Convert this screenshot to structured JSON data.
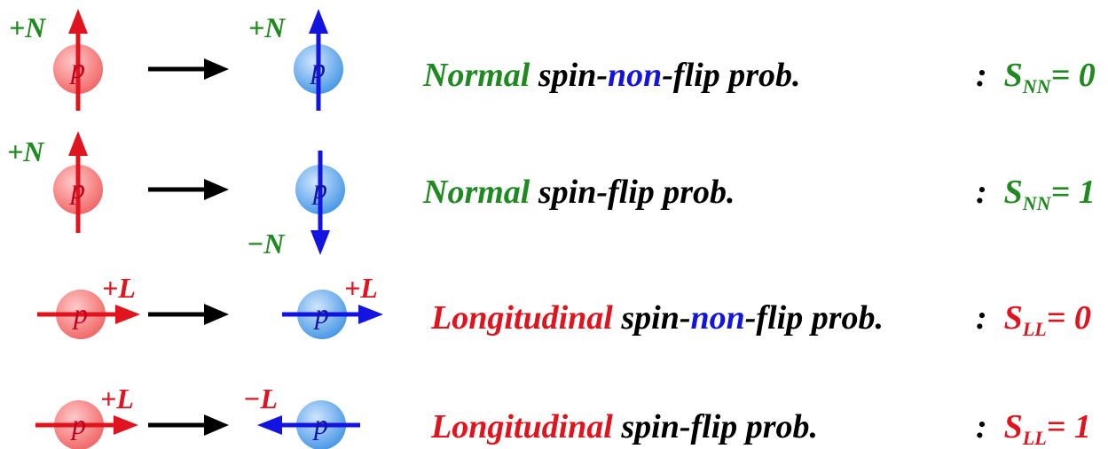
{
  "colors": {
    "green": "#1f8a1f",
    "red": "#e0141e",
    "blue": "#1414e0",
    "red_ball": "#f47a7a",
    "blue_ball": "#5aa6ec",
    "black": "#000000"
  },
  "particle_letter": "p",
  "rows": [
    {
      "initial_label": "+N",
      "final_label": "+N",
      "desc_prefix": "Normal",
      "desc_mid1": " spin-",
      "desc_highlight": "non",
      "desc_mid2": "-flip prob.",
      "colon": ":",
      "s_symbol": "S",
      "s_sub": "NN",
      "s_eq": "= 0"
    },
    {
      "initial_label": "+N",
      "final_label": "−N",
      "desc_prefix": "Normal",
      "desc_mid1": " spin-flip prob.",
      "colon": ":",
      "s_symbol": "S",
      "s_sub": "NN",
      "s_eq": "= 1"
    },
    {
      "initial_label": "+L",
      "final_label": "+L",
      "desc_prefix": "Longitudinal",
      "desc_mid1": " spin-",
      "desc_highlight": "non",
      "desc_mid2": "-flip prob.",
      "colon": ":",
      "s_symbol": "S",
      "s_sub": "LL",
      "s_eq": "= 0"
    },
    {
      "initial_label": "+L",
      "final_label": "−L",
      "desc_prefix": "Longitudinal",
      "desc_mid1": " spin-flip prob.",
      "colon": ":",
      "s_symbol": "S",
      "s_sub": "LL",
      "s_eq": "= 1"
    }
  ]
}
